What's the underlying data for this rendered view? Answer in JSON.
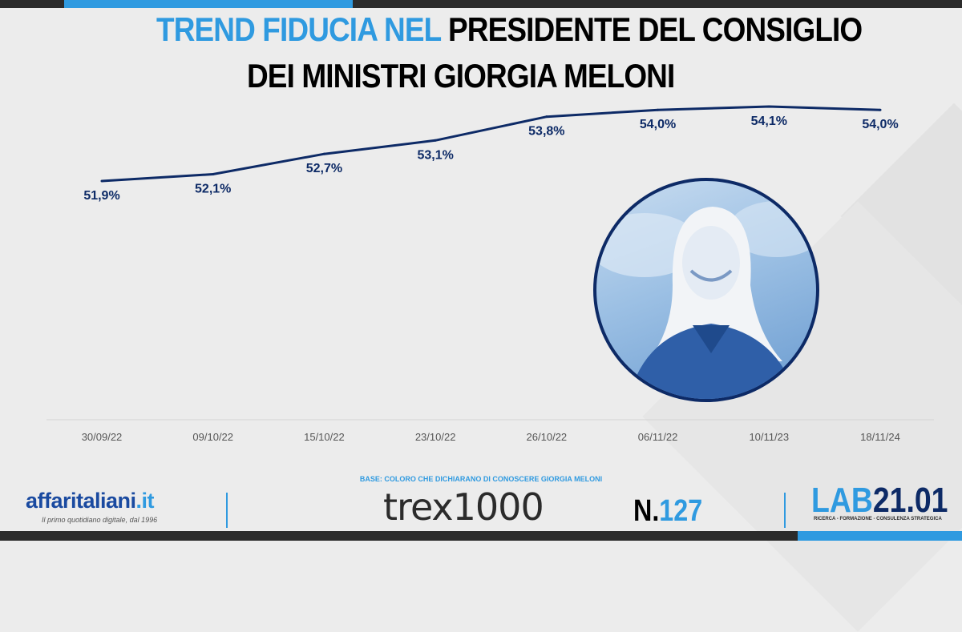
{
  "title": {
    "part_blue": "TREND FIDUCIA NEL",
    "part_black": "PRESIDENTE DEL CONSIGLIO",
    "line2": "DEI MINISTRI GIORGIA MELONI"
  },
  "chart_data": {
    "type": "line",
    "title": "TREND FIDUCIA NEL PRESIDENTE DEL CONSIGLIO DEI MINISTRI GIORGIA MELONI",
    "categories": [
      "30/09/22",
      "09/10/22",
      "15/10/22",
      "23/10/22",
      "26/10/22",
      "06/11/22",
      "10/11/23",
      "18/11/24"
    ],
    "series": [
      {
        "values": [
          51.9,
          52.1,
          52.7,
          53.1,
          53.8,
          54.0,
          54.1,
          54.0
        ],
        "labels": [
          "51,9%",
          "52,1%",
          "52,7%",
          "53,1%",
          "53,8%",
          "54,0%",
          "54,1%",
          "54,0%"
        ]
      }
    ],
    "xlabel": "",
    "ylabel": "",
    "grid": false,
    "colors": {
      "line": "#0d2a66",
      "labels": "#0d2a66",
      "axis_labels": "#555555"
    }
  },
  "footer": {
    "base_note": "BASE: COLORO CHE DICHIARANO DI CONOSCERE GIORGIA MELONI",
    "brand_main": "affaritaliani",
    "brand_dot": ".it",
    "brand_tagline": "Il primo quotidiano digitale, dal 1996",
    "trex_label": "trex1000",
    "issue_prefix": "N.",
    "issue_number": "127",
    "lab_prefix": "LAB",
    "lab_number": "21.01",
    "lab_tagline": "RICERCA - FORMAZIONE - CONSULENZA STRATEGICA"
  },
  "colors": {
    "accent_blue": "#2f9ae0",
    "navy": "#0d2a66",
    "background": "#ececec"
  }
}
